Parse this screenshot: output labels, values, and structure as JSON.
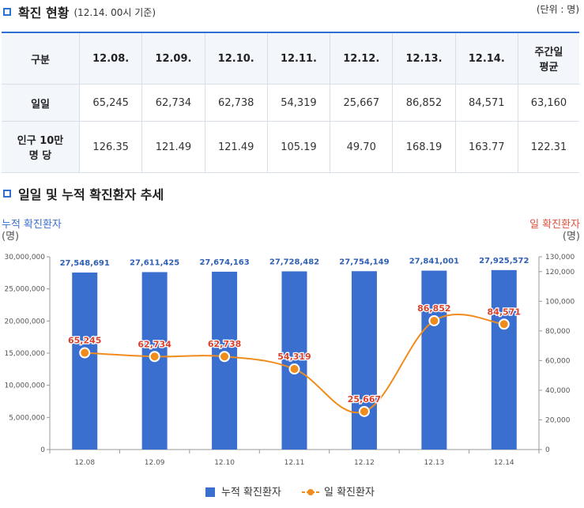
{
  "section1": {
    "title": "확진 현황",
    "subtitle": "(12.14. 00시 기준)",
    "unit": "(단위 : 명)"
  },
  "table": {
    "header_label": "구분",
    "dates": [
      "12.08.",
      "12.09.",
      "12.10.",
      "12.11.",
      "12.12.",
      "12.13.",
      "12.14."
    ],
    "avg_line1": "주간일",
    "avg_line2": "평균",
    "row1": {
      "label": "일일",
      "values": [
        "65,245",
        "62,734",
        "62,738",
        "54,319",
        "25,667",
        "86,852",
        "84,571"
      ],
      "avg": "63,160"
    },
    "row2": {
      "label_line1": "인구 10만",
      "label_line2": "명 당",
      "values": [
        "126.35",
        "121.49",
        "121.49",
        "105.19",
        "49.70",
        "168.19",
        "163.77"
      ],
      "avg": "122.31"
    }
  },
  "section2": {
    "title": "일일 및 누적 확진환자 추세"
  },
  "chart_data": {
    "type": "bar",
    "categories": [
      "12.08",
      "12.09",
      "12.10",
      "12.11",
      "12.12",
      "12.13",
      "12.14"
    ],
    "series": [
      {
        "name": "누적 확진환자",
        "type": "bar",
        "axis": "left",
        "color": "#3a6fcf",
        "values": [
          27548691,
          27611425,
          27674163,
          27728482,
          27754149,
          27841001,
          27925572
        ],
        "labels": [
          "27,548,691",
          "27,611,425",
          "27,674,163",
          "27,728,482",
          "27,754,149",
          "27,841,001",
          "27,925,572"
        ]
      },
      {
        "name": "일 확진환자",
        "type": "line",
        "axis": "right",
        "color": "#f08c1c",
        "label_color": "#d9412b",
        "values": [
          65245,
          62734,
          62738,
          54319,
          25667,
          86852,
          84571
        ],
        "labels": [
          "65,245",
          "62,734",
          "62,738",
          "54,319",
          "25,667",
          "86,852",
          "84,571"
        ]
      }
    ],
    "left_axis": {
      "title": "누적 확진환자",
      "unit": "(명)",
      "range": [
        0,
        30000000
      ],
      "ticks": [
        0,
        5000000,
        10000000,
        15000000,
        20000000,
        25000000,
        30000000
      ],
      "tick_labels": [
        "0",
        "5,000,000",
        "10,000,000",
        "15,000,000",
        "20,000,000",
        "25,000,000",
        "30,000,000"
      ]
    },
    "right_axis": {
      "title": "일 확진환자",
      "unit": "(명)",
      "range": [
        0,
        130000
      ],
      "ticks": [
        0,
        20000,
        40000,
        60000,
        80000,
        100000,
        120000,
        130000
      ],
      "tick_labels": [
        "0",
        "20,000",
        "40,000",
        "60,000",
        "80,000",
        "100,000",
        "120,000",
        "130,000"
      ]
    },
    "legend": {
      "position": "bottom-center",
      "items": [
        "누적 확진환자",
        "일 확진환자"
      ]
    }
  }
}
